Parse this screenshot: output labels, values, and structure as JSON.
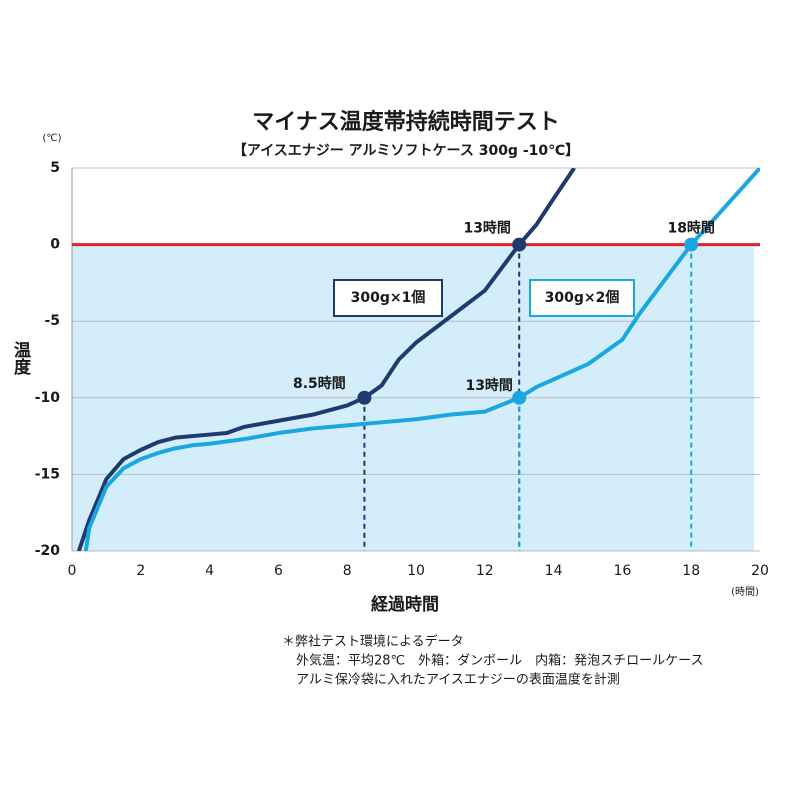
{
  "chart_data": {
    "type": "line",
    "title": "マイナス温度帯持続時間テスト",
    "subtitle": "【アイスエナジー アルミソフトケース 300g -10℃】",
    "x_label": "経過時間",
    "y_label": "温度",
    "x_unit": "(時間)",
    "y_unit": "(℃)",
    "xlim": [
      0,
      20
    ],
    "ylim": [
      -20,
      5
    ],
    "xticks": [
      0,
      2,
      4,
      6,
      8,
      10,
      12,
      14,
      16,
      18,
      20
    ],
    "yticks": [
      5,
      0,
      -5,
      -10,
      -15,
      -20
    ],
    "grid": true,
    "threshold": 0,
    "threshold_color": "#e0202a",
    "fill_color": "#d3eefa",
    "series": [
      {
        "name": "300g×1個",
        "color": "#1f3a6e",
        "x": [
          0.2,
          0.5,
          1,
          1.5,
          2,
          2.5,
          3,
          4,
          4.5,
          5,
          6,
          7,
          8,
          8.5,
          9,
          9.5,
          10,
          11,
          12,
          12.5,
          13,
          13.5,
          14,
          14.6
        ],
        "values": [
          -20,
          -18,
          -15.3,
          -14,
          -13.4,
          -12.9,
          -12.6,
          -12.4,
          -12.3,
          -11.9,
          -11.5,
          -11.1,
          -10.5,
          -10,
          -9.2,
          -7.5,
          -6.4,
          -4.7,
          -3,
          -1.5,
          0,
          1.3,
          3,
          5
        ],
        "points": [
          {
            "text": "8.5時間",
            "x": 8.5,
            "y": -10
          },
          {
            "text": "13時間",
            "x": 13,
            "y": 0
          }
        ]
      },
      {
        "name": "300g×2個",
        "color": "#1aa6e0",
        "x": [
          0.4,
          0.5,
          1,
          1.5,
          2,
          2.5,
          3,
          3.5,
          4,
          5,
          6,
          7,
          8,
          9,
          10,
          11,
          12,
          13,
          13.5,
          14,
          15,
          16,
          16.5,
          17,
          17.5,
          18,
          19,
          20
        ],
        "values": [
          -20,
          -18.5,
          -15.8,
          -14.6,
          -14,
          -13.6,
          -13.3,
          -13.1,
          -13,
          -12.7,
          -12.3,
          -12,
          -11.8,
          -11.6,
          -11.4,
          -11.1,
          -10.9,
          -10,
          -9.3,
          -8.8,
          -7.8,
          -6.2,
          -4.5,
          -3,
          -1.5,
          0,
          2.5,
          5
        ],
        "points": [
          {
            "text": "13時間",
            "x": 13,
            "y": -10
          },
          {
            "text": "18時間",
            "x": 18,
            "y": 0
          }
        ]
      }
    ],
    "footnote": [
      "＊弊社テスト環境によるデータ",
      "外気温：平均28℃　外箱：ダンボール　内箱：発泡スチロールケース",
      "アルミ保冷袋に入れたアイスエナジーの表面温度を計測"
    ]
  }
}
